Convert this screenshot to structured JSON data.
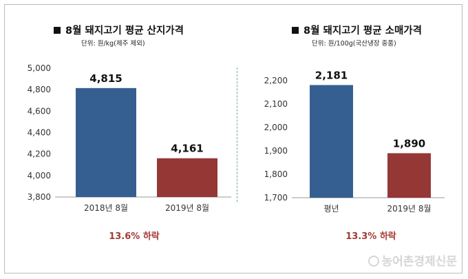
{
  "chart_data": [
    {
      "type": "bar",
      "title": "8월 돼지고기 평균 산지가격",
      "subtitle": "단위: 원/kg(제주 제외)",
      "categories": [
        "2018년 8월",
        "2019년 8월"
      ],
      "values": [
        4815,
        4161
      ],
      "value_labels": [
        "4,815",
        "4,161"
      ],
      "colors": [
        "#365f91",
        "#953735"
      ],
      "ylim": [
        3800,
        5000
      ],
      "yticks": [
        3800,
        4000,
        4200,
        4400,
        4600,
        4800,
        5000
      ],
      "ytick_labels": [
        "3,800",
        "4,000",
        "4,200",
        "4,400",
        "4,600",
        "4,800",
        "5,000"
      ],
      "grid": false,
      "change_label": "13.6% 하락"
    },
    {
      "type": "bar",
      "title": "8월 돼지고기 평균 소매가격",
      "subtitle": "단위: 원/100g(국산냉장 중품)",
      "categories": [
        "평년",
        "2019년 8월"
      ],
      "values": [
        2181,
        1890
      ],
      "value_labels": [
        "2,181",
        "1,890"
      ],
      "colors": [
        "#365f91",
        "#953735"
      ],
      "ylim": [
        1700,
        2200
      ],
      "yticks": [
        1700,
        1800,
        1900,
        2000,
        2100,
        2200
      ],
      "ytick_labels": [
        "1,700",
        "1,800",
        "1,900",
        "2,000",
        "2,100",
        "2,200"
      ],
      "grid": false,
      "change_label": "13.3% 하락"
    }
  ],
  "watermark": "농어촌경제신문"
}
